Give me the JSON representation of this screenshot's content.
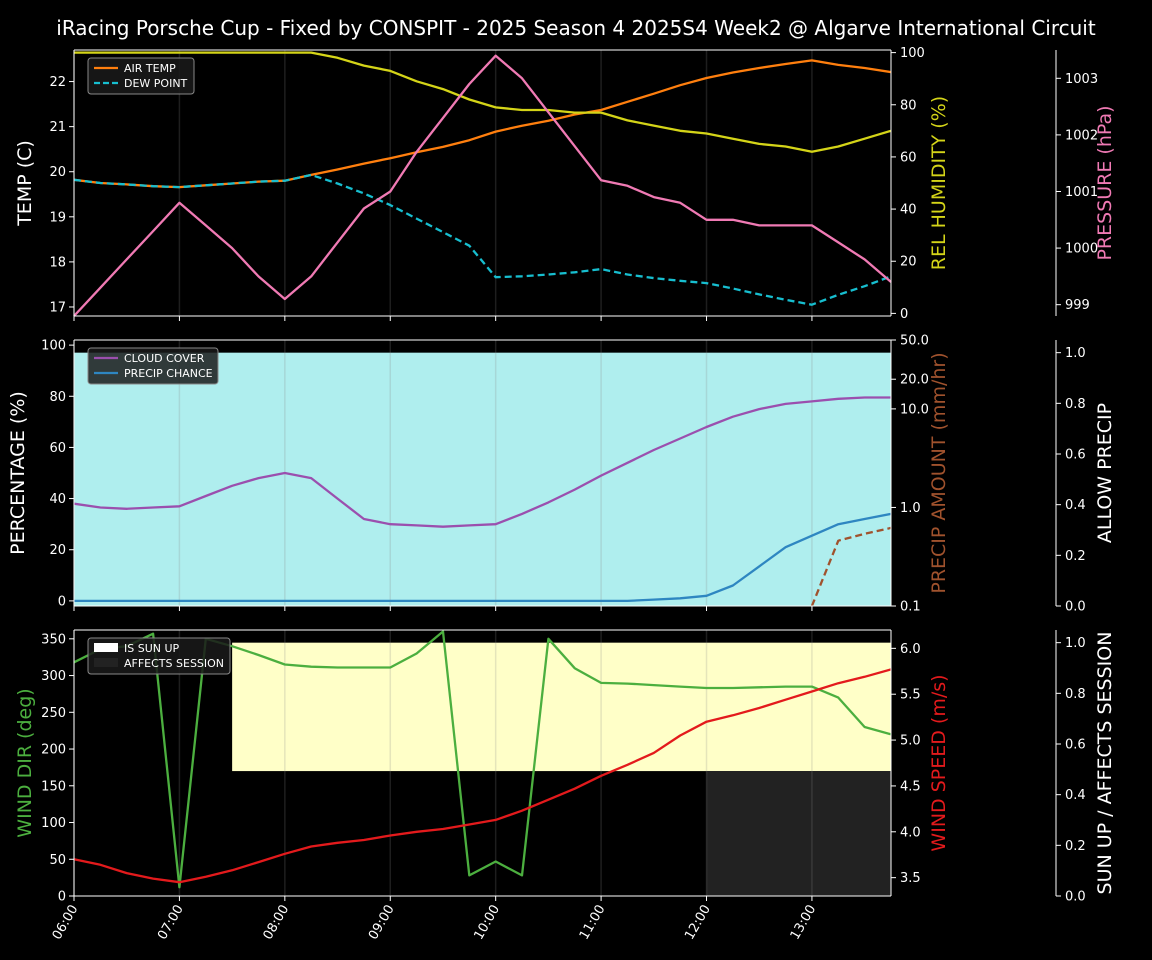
{
  "title": "iRacing Porsche Cup - Fixed by CONSPIT - 2025 Season 4 2025S4 Week2 @ Algarve International Circuit",
  "colors": {
    "background": "#000000",
    "axis": "#ffffff",
    "air_temp": "#ff7f0e",
    "dew_point": "#17becf",
    "humidity": "#d4d418",
    "pressure": "#f07ab4",
    "cloud": "#9b4fae",
    "precip_chance": "#2e86c1",
    "precip_amount": "#a0522d",
    "allow_precip_fill": "#afeeee",
    "wind_dir": "#4caf3f",
    "wind_speed": "#e31a1c",
    "sun_up_fill": "#ffffc8",
    "affects_session_fill": "#222222"
  },
  "x_ticks": [
    "06:00",
    "07:00",
    "08:00",
    "09:00",
    "10:00",
    "11:00",
    "12:00",
    "13:00"
  ],
  "chart_data": [
    {
      "type": "line",
      "panel": "temperature",
      "x": [
        "06:00",
        "06:15",
        "06:30",
        "06:45",
        "07:00",
        "07:15",
        "07:30",
        "07:45",
        "08:00",
        "08:15",
        "08:30",
        "08:45",
        "09:00",
        "09:15",
        "09:30",
        "09:45",
        "10:00",
        "10:15",
        "10:30",
        "10:45",
        "11:00",
        "11:15",
        "11:30",
        "11:45",
        "12:00",
        "12:15",
        "12:30",
        "12:45",
        "13:00",
        "13:15",
        "13:30",
        "13:45"
      ],
      "axes": {
        "left": {
          "label": "TEMP (C)",
          "ylim": [
            16.8,
            22.7
          ],
          "ticks": [
            17,
            18,
            19,
            20,
            21,
            22
          ]
        },
        "right1": {
          "label": "REL HUMIDITY (%)",
          "ylim": [
            -1,
            101
          ],
          "ticks": [
            0,
            20,
            40,
            60,
            80,
            100
          ]
        },
        "right2": {
          "label": "PRESSURE (hPa)",
          "ylim": [
            998.8,
            1003.5
          ],
          "ticks": [
            999,
            1000,
            1001,
            1002,
            1003
          ]
        }
      },
      "legend": {
        "position": "top-left",
        "entries": [
          "AIR TEMP",
          "DEW POINT"
        ]
      },
      "series": [
        {
          "name": "AIR TEMP",
          "axis": "left",
          "style": "solid",
          "values": [
            19.82,
            19.75,
            19.72,
            19.68,
            19.66,
            19.7,
            19.74,
            19.78,
            19.8,
            19.93,
            20.05,
            20.18,
            20.3,
            20.43,
            20.55,
            20.7,
            20.89,
            21.02,
            21.13,
            21.27,
            21.37,
            21.55,
            21.73,
            21.92,
            22.08,
            22.2,
            22.3,
            22.39,
            22.47,
            22.37,
            22.3,
            22.21
          ]
        },
        {
          "name": "DEW POINT",
          "axis": "left",
          "style": "dashed",
          "values": [
            19.82,
            19.75,
            19.72,
            19.68,
            19.66,
            19.7,
            19.74,
            19.78,
            19.8,
            19.93,
            19.74,
            19.52,
            19.26,
            18.96,
            18.66,
            18.36,
            17.66,
            17.68,
            17.72,
            17.77,
            17.84,
            17.72,
            17.64,
            17.58,
            17.53,
            17.41,
            17.28,
            17.16,
            17.05,
            17.27,
            17.46,
            17.68
          ]
        },
        {
          "name": "REL HUMIDITY",
          "axis": "right1",
          "style": "solid",
          "values": [
            100,
            100,
            100,
            100,
            100,
            100,
            100,
            100,
            100,
            100,
            98,
            95,
            93,
            89,
            86,
            82,
            79,
            78,
            78,
            77,
            77,
            74,
            72,
            70,
            69,
            67,
            65,
            64,
            62,
            64,
            67,
            70
          ]
        },
        {
          "name": "PRESSURE",
          "axis": "right2",
          "style": "solid",
          "values": [
            998.8,
            999.3,
            999.8,
            1000.3,
            1000.8,
            1000.4,
            1000.0,
            999.5,
            999.1,
            999.5,
            1000.1,
            1000.7,
            1001.0,
            1001.7,
            1002.3,
            1002.9,
            1003.4,
            1003.0,
            1002.4,
            1001.8,
            1001.2,
            1001.1,
            1000.9,
            1000.8,
            1000.5,
            1000.5,
            1000.4,
            1000.4,
            1000.4,
            1000.1,
            999.8,
            999.4
          ]
        }
      ]
    },
    {
      "type": "line",
      "panel": "precipitation",
      "x": [
        "06:00",
        "06:15",
        "06:30",
        "06:45",
        "07:00",
        "07:15",
        "07:30",
        "07:45",
        "08:00",
        "08:15",
        "08:30",
        "08:45",
        "09:00",
        "09:15",
        "09:30",
        "09:45",
        "10:00",
        "10:15",
        "10:30",
        "10:45",
        "11:00",
        "11:15",
        "11:30",
        "11:45",
        "12:00",
        "12:15",
        "12:30",
        "12:45",
        "13:00",
        "13:15",
        "13:30",
        "13:45"
      ],
      "axes": {
        "left": {
          "label": "PERCENTAGE (%)",
          "ylim": [
            -2,
            102
          ],
          "ticks": [
            0,
            20,
            40,
            60,
            80,
            100
          ]
        },
        "right1": {
          "label": "PRECIP AMOUNT (mm/hr)",
          "scale": "log",
          "ylim": [
            0.1,
            50.0
          ],
          "ticks": [
            0.1,
            1.0,
            10.0,
            20.0,
            50.0
          ]
        },
        "right2": {
          "label": "ALLOW PRECIP",
          "ylim": [
            0.0,
            1.05
          ],
          "ticks": [
            0.0,
            0.2,
            0.4,
            0.6,
            0.8,
            1.0
          ]
        }
      },
      "legend": {
        "position": "top-left",
        "entries": [
          "CLOUD COVER",
          "PRECIP CHANCE"
        ]
      },
      "allow_precip_area": {
        "value": 1.0,
        "from": "06:00",
        "to": "13:45"
      },
      "series": [
        {
          "name": "CLOUD COVER",
          "axis": "left",
          "style": "solid",
          "values": [
            38,
            36.5,
            36,
            36.5,
            37,
            41,
            45,
            48,
            50,
            48,
            40,
            32,
            30,
            29.5,
            29,
            29.5,
            30,
            34,
            38.5,
            43.5,
            49,
            54,
            59,
            63.5,
            68,
            72,
            75,
            77,
            78,
            79,
            79.5,
            79.5
          ]
        },
        {
          "name": "PRECIP CHANCE",
          "axis": "left",
          "style": "solid",
          "values": [
            0,
            0,
            0,
            0,
            0,
            0,
            0,
            0,
            0,
            0,
            0,
            0,
            0,
            0,
            0,
            0,
            0,
            0,
            0,
            0,
            0,
            0,
            0.5,
            1,
            2,
            6,
            13.5,
            21,
            25.5,
            30,
            32,
            34
          ]
        },
        {
          "name": "PRECIP AMOUNT",
          "axis": "right1",
          "style": "dashed",
          "x": [
            "13:00",
            "13:15",
            "13:30",
            "13:45"
          ],
          "values": [
            0.1,
            0.46,
            0.54,
            0.62
          ]
        }
      ]
    },
    {
      "type": "line",
      "panel": "wind",
      "x": [
        "06:00",
        "06:15",
        "06:30",
        "06:45",
        "07:00",
        "07:15",
        "07:30",
        "07:45",
        "08:00",
        "08:15",
        "08:30",
        "08:45",
        "09:00",
        "09:15",
        "09:30",
        "09:45",
        "10:00",
        "10:15",
        "10:30",
        "10:45",
        "11:00",
        "11:15",
        "11:30",
        "11:45",
        "12:00",
        "12:15",
        "12:30",
        "12:45",
        "13:00",
        "13:15",
        "13:30",
        "13:45"
      ],
      "axes": {
        "left": {
          "label": "WIND DIR (deg)",
          "ylim": [
            0,
            362
          ],
          "ticks": [
            0,
            50,
            100,
            150,
            200,
            250,
            300,
            350
          ]
        },
        "right1": {
          "label": "WIND SPEED (m/s)",
          "ylim": [
            3.3,
            6.2
          ],
          "ticks": [
            3.5,
            4.0,
            4.5,
            5.0,
            5.5,
            6.0
          ]
        },
        "right2": {
          "label": "SUN UP / AFFECTS SESSION",
          "ylim": [
            0.0,
            1.05
          ],
          "ticks": [
            0.0,
            0.2,
            0.4,
            0.6,
            0.8,
            1.0
          ]
        }
      },
      "legend": {
        "position": "top-left",
        "entries": [
          "IS SUN UP",
          "AFFECTS SESSION"
        ]
      },
      "sun_up": {
        "value": 1.0,
        "from": "07:30",
        "to": "13:45"
      },
      "affects_session": {
        "value": 1.0,
        "from": "12:00",
        "to": "13:45"
      },
      "series": [
        {
          "name": "WIND DIR",
          "axis": "left",
          "style": "solid",
          "values": [
            318,
            336,
            340,
            357,
            12,
            350,
            340,
            328,
            315,
            312,
            311,
            311,
            311,
            330,
            360,
            28,
            47,
            28,
            350,
            310,
            290,
            289,
            287,
            285,
            283,
            283,
            284,
            285,
            285,
            270,
            230,
            220
          ]
        },
        {
          "name": "WIND SPEED",
          "axis": "right1",
          "style": "solid",
          "values": [
            3.7,
            3.64,
            3.55,
            3.49,
            3.45,
            3.51,
            3.58,
            3.67,
            3.76,
            3.84,
            3.88,
            3.91,
            3.96,
            4.0,
            4.03,
            4.08,
            4.13,
            4.23,
            4.35,
            4.47,
            4.61,
            4.73,
            4.86,
            5.05,
            5.2,
            5.27,
            5.35,
            5.44,
            5.53,
            5.62,
            5.69,
            5.77
          ]
        }
      ]
    }
  ]
}
